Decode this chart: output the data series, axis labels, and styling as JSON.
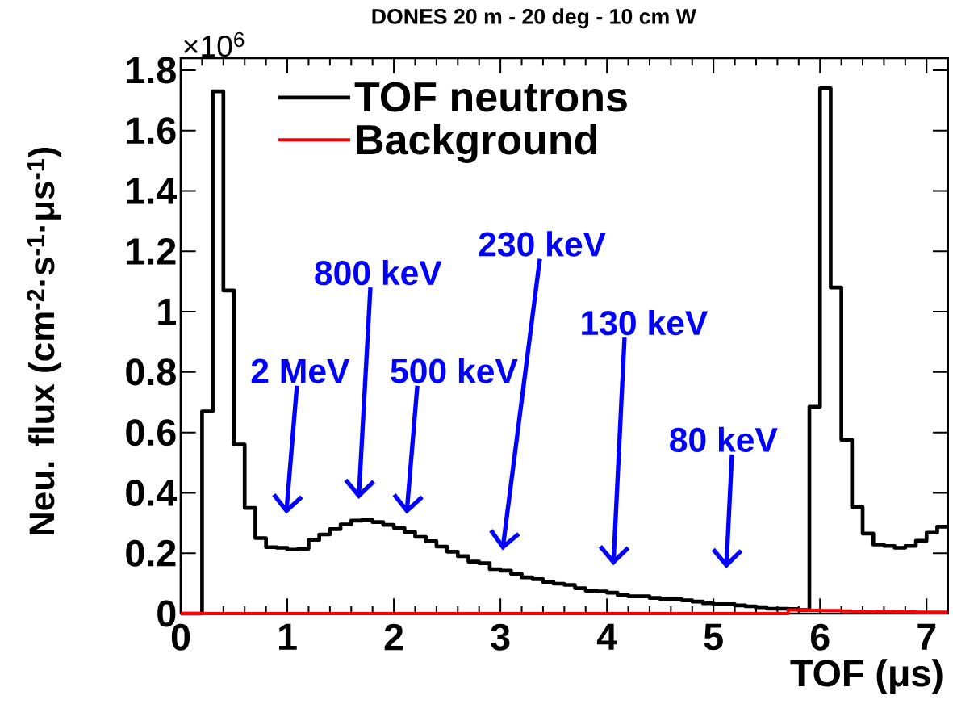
{
  "chart_data": {
    "type": "histogram",
    "title": "DONES 20 m - 20 deg - 10 cm W",
    "xlabel": "TOF (μs)",
    "ylabel": "Neu. flux (cm$^{-2}$·s$^{-1}$·μs$^{-1}$)",
    "bins": [
      0,
      0.1,
      0.2,
      0.3,
      0.4,
      0.5,
      0.6,
      0.7,
      0.8,
      0.9,
      1.0,
      1.1,
      1.2,
      1.3,
      1.4,
      1.5,
      1.6,
      1.7,
      1.8,
      1.9,
      2.0,
      2.1,
      2.2,
      2.3,
      2.4,
      2.5,
      2.6,
      2.7,
      2.8,
      2.9,
      3.0,
      3.1,
      3.2,
      3.3,
      3.4,
      3.5,
      3.6,
      3.7,
      3.8,
      3.9,
      4.0,
      4.1,
      4.2,
      4.3,
      4.4,
      4.5,
      4.6,
      4.7,
      4.8,
      4.9,
      5.0,
      5.1,
      5.2,
      5.3,
      5.4,
      5.5,
      5.6,
      5.7,
      5.8,
      5.9,
      6.0,
      6.1,
      6.2,
      6.3,
      6.4,
      6.5,
      6.6,
      6.7,
      6.8,
      6.9,
      7.0,
      7.1,
      7.2
    ],
    "series": [
      {
        "name": "TOF neutrons",
        "color": "#000000",
        "values": [
          0,
          0,
          0.67,
          1.73,
          1.07,
          0.56,
          0.35,
          0.25,
          0.22,
          0.218,
          0.212,
          0.215,
          0.244,
          0.262,
          0.28,
          0.295,
          0.308,
          0.31,
          0.303,
          0.294,
          0.284,
          0.27,
          0.254,
          0.24,
          0.222,
          0.205,
          0.19,
          0.172,
          0.167,
          0.147,
          0.142,
          0.132,
          0.12,
          0.114,
          0.105,
          0.099,
          0.095,
          0.084,
          0.076,
          0.073,
          0.069,
          0.061,
          0.057,
          0.057,
          0.052,
          0.048,
          0.048,
          0.044,
          0.04,
          0.034,
          0.031,
          0.031,
          0.027,
          0.024,
          0.021,
          0.016,
          0.016,
          0.015,
          0.012,
          0.685,
          1.74,
          1.08,
          0.576,
          0.353,
          0.265,
          0.229,
          0.224,
          0.218,
          0.224,
          0.241,
          0.268,
          0.288
        ]
      },
      {
        "name": "Background",
        "color": "#ff0000",
        "values": [
          0,
          0,
          0,
          0,
          0,
          0,
          0,
          0,
          0,
          0,
          0,
          0,
          0,
          0,
          0,
          0,
          0,
          0,
          0,
          0,
          0,
          0,
          0,
          0,
          0,
          0,
          0,
          0,
          0,
          0,
          0,
          0,
          0,
          0,
          0,
          0,
          0,
          0,
          0,
          0,
          0,
          0,
          0,
          0,
          0,
          0,
          0,
          0,
          0,
          0,
          0,
          0,
          0,
          0,
          0,
          0,
          0,
          0.012,
          0.012,
          0.011,
          0.01,
          0.01,
          0.009,
          0.008,
          0.008,
          0.007,
          0.007,
          0.006,
          0.006,
          0.005,
          0.005,
          0.005
        ]
      }
    ],
    "xlim": [
      0,
      7.2
    ],
    "ylim": [
      0,
      1.84
    ],
    "xticks": [
      0,
      1,
      2,
      3,
      4,
      5,
      6,
      7
    ],
    "yticks": [
      0,
      0.2,
      0.4,
      0.6,
      0.8,
      1,
      1.2,
      1.4,
      1.6,
      1.8
    ],
    "legend": "top left",
    "annotations": [
      "×10$^{6}$",
      "2 MeV",
      "800 keV",
      "500 keV",
      "230 keV",
      "130 keV",
      "80 keV"
    ]
  }
}
